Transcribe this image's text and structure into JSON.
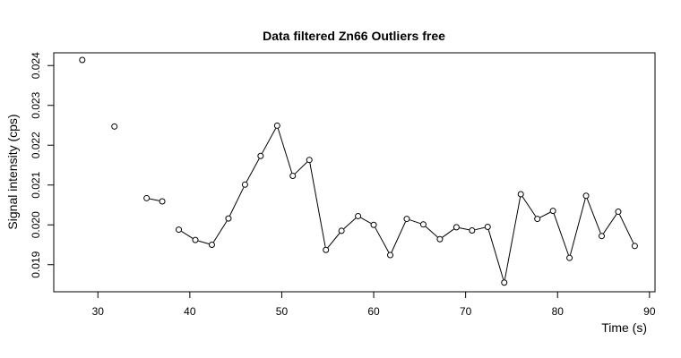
{
  "chart_data": {
    "type": "scatter",
    "title": "Data filtered Zn66 Outliers free",
    "xlabel": "Time (s)",
    "ylabel": "Signal intensity (cps)",
    "xlim": [
      25.2,
      90.6
    ],
    "ylim": [
      0.01832,
      0.02432
    ],
    "xticks": [
      30,
      40,
      50,
      60,
      70,
      80,
      90
    ],
    "xtick_labels": [
      "30",
      "40",
      "50",
      "60",
      "70",
      "80",
      "90"
    ],
    "yticks": [
      0.019,
      0.02,
      0.021,
      0.022,
      0.023,
      0.024
    ],
    "ytick_labels": [
      "0.019",
      "0.020",
      "0.021",
      "0.022",
      "0.023",
      "0.024"
    ],
    "grid": false,
    "points": [
      {
        "x": 28.3,
        "y": 0.02414
      },
      {
        "x": 31.8,
        "y": 0.02247
      },
      {
        "x": 35.3,
        "y": 0.02067
      },
      {
        "x": 37.0,
        "y": 0.02059
      },
      {
        "x": 38.8,
        "y": 0.01988
      },
      {
        "x": 40.6,
        "y": 0.01962
      },
      {
        "x": 42.4,
        "y": 0.0195
      },
      {
        "x": 44.2,
        "y": 0.02016
      },
      {
        "x": 46.0,
        "y": 0.02101
      },
      {
        "x": 47.7,
        "y": 0.02173
      },
      {
        "x": 49.5,
        "y": 0.02249
      },
      {
        "x": 51.2,
        "y": 0.02123
      },
      {
        "x": 53.0,
        "y": 0.02163
      },
      {
        "x": 54.8,
        "y": 0.01937
      },
      {
        "x": 56.5,
        "y": 0.01985
      },
      {
        "x": 58.3,
        "y": 0.02022
      },
      {
        "x": 60.0,
        "y": 0.02
      },
      {
        "x": 61.8,
        "y": 0.01924
      },
      {
        "x": 63.6,
        "y": 0.02015
      },
      {
        "x": 65.4,
        "y": 0.02001
      },
      {
        "x": 67.2,
        "y": 0.01964
      },
      {
        "x": 69.0,
        "y": 0.01994
      },
      {
        "x": 70.7,
        "y": 0.01986
      },
      {
        "x": 72.4,
        "y": 0.01995
      },
      {
        "x": 74.2,
        "y": 0.01855
      },
      {
        "x": 76.0,
        "y": 0.02077
      },
      {
        "x": 77.8,
        "y": 0.02015
      },
      {
        "x": 79.5,
        "y": 0.02035
      },
      {
        "x": 81.3,
        "y": 0.01917
      },
      {
        "x": 83.1,
        "y": 0.02073
      },
      {
        "x": 84.8,
        "y": 0.01972
      },
      {
        "x": 86.6,
        "y": 0.02033
      },
      {
        "x": 88.4,
        "y": 0.01947
      }
    ],
    "line_segments": [
      [
        2,
        3
      ],
      [
        4,
        32
      ]
    ],
    "marker": "open-circle",
    "line_color": "#000000",
    "point_fill": "#ffffff"
  }
}
